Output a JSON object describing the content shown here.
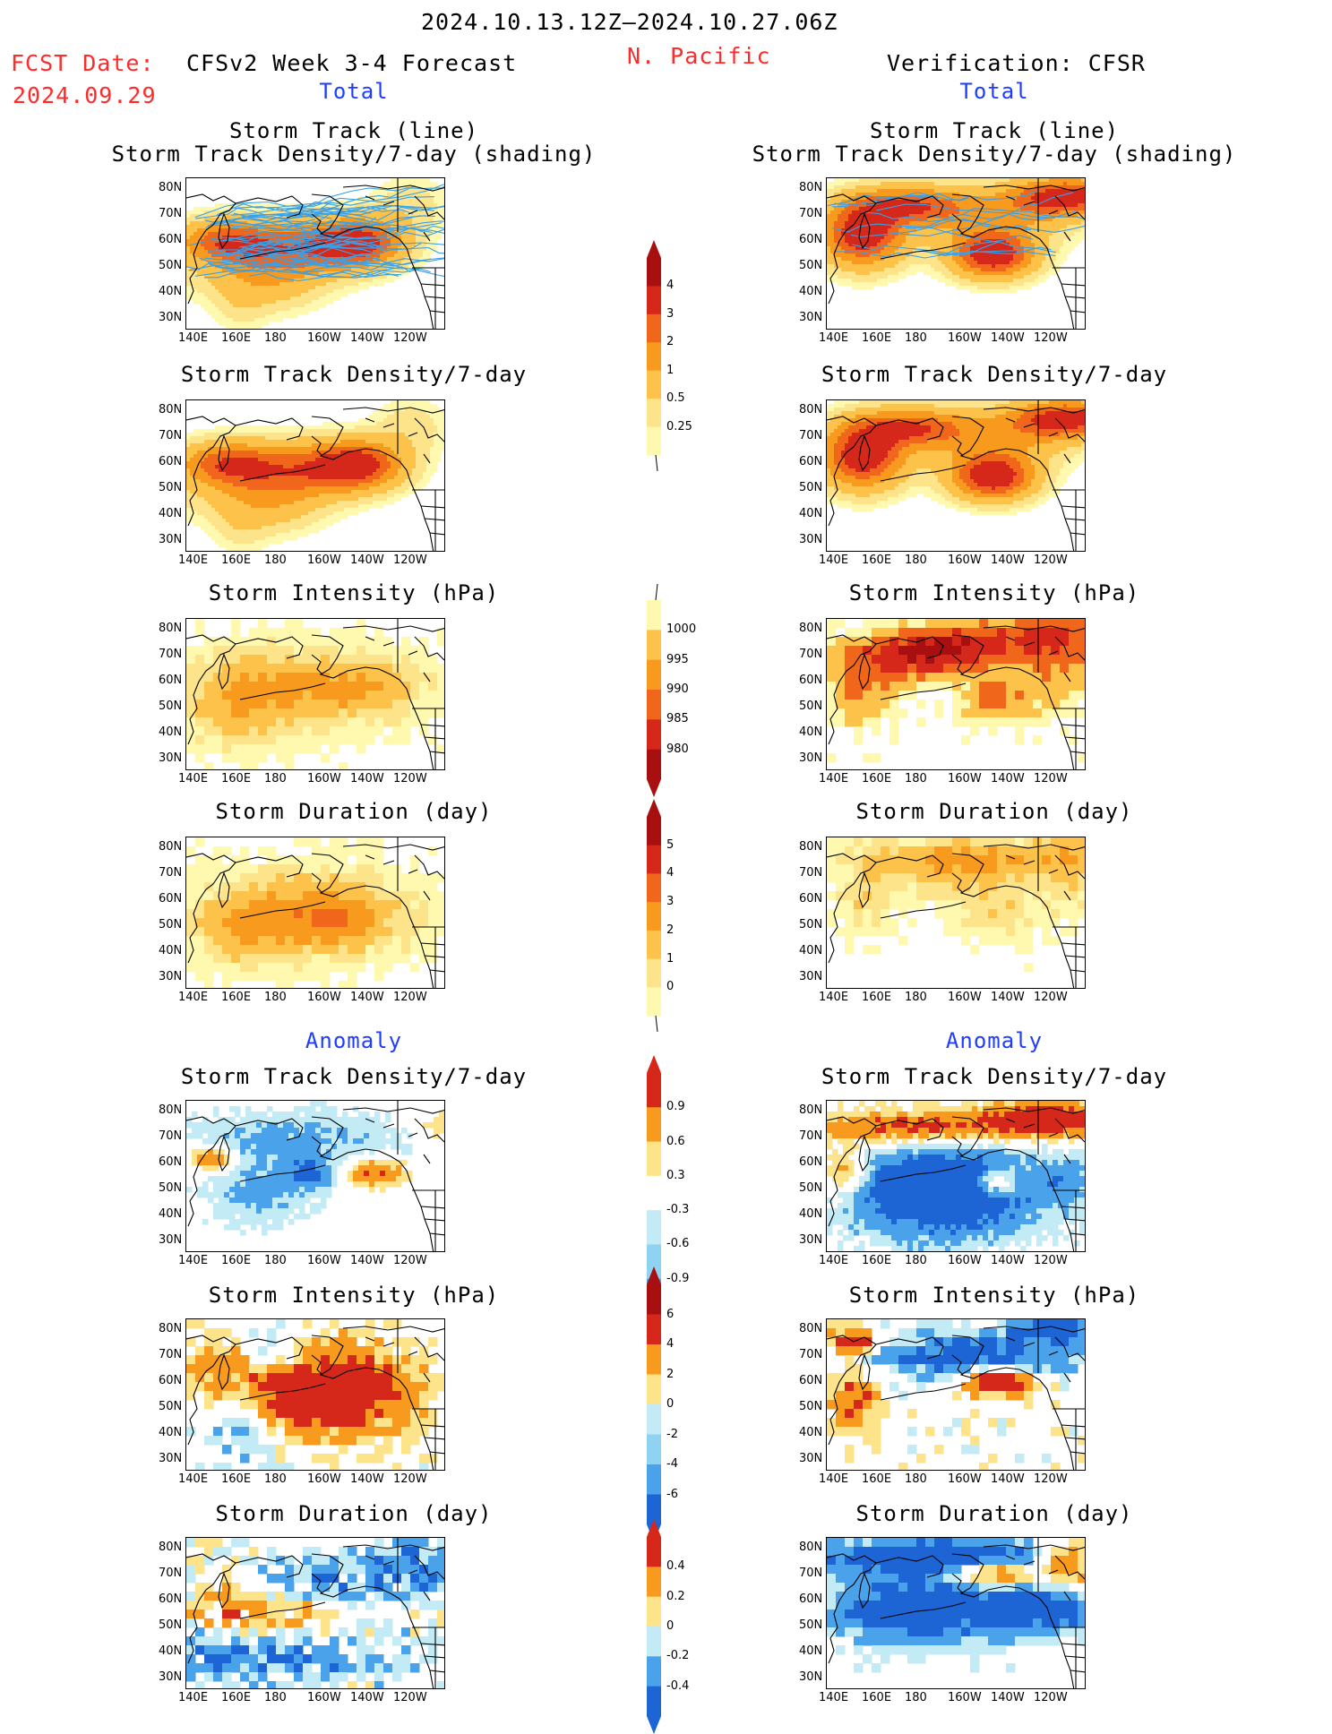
{
  "header": {
    "date_range": "2024.10.13.12Z–2024.10.27.06Z",
    "fcst_label": "FCST Date:",
    "fcst_date": "2024.09.29",
    "forecast_title": "CFSv2 Week 3-4 Forecast",
    "region": "N. Pacific",
    "verification_title": "Verification: CFSR"
  },
  "sections": {
    "total_left": "Total",
    "total_right": "Total",
    "anomaly_left": "Anomaly",
    "anomaly_right": "Anomaly"
  },
  "titles": {
    "track_line": "Storm Track (line)",
    "track_shading": "Storm Track Density/7-day (shading)",
    "density": "Storm Track Density/7-day",
    "intensity": "Storm Intensity (hPa)",
    "duration": "Storm Duration (day)"
  },
  "axes": {
    "lat_ticks": [
      "80N",
      "70N",
      "60N",
      "50N",
      "40N",
      "30N"
    ],
    "lon_ticks": [
      "140E",
      "160E",
      "180",
      "160W",
      "140W",
      "120W"
    ]
  },
  "colorbars": {
    "density_total": [
      "4",
      "3",
      "2",
      "1",
      "0.5",
      "0.25"
    ],
    "intensity_total": [
      "1000",
      "995",
      "990",
      "985",
      "980"
    ],
    "duration_total": [
      "5",
      "4",
      "3",
      "2",
      "1",
      "0"
    ],
    "density_anom": [
      "0.9",
      "0.6",
      "0.3",
      "-0.3",
      "-0.6",
      "-0.9"
    ],
    "intensity_anom": [
      "6",
      "4",
      "2",
      "0",
      "-2",
      "-4",
      "-6"
    ],
    "duration_anom": [
      "0.4",
      "0.2",
      "0",
      "-0.2",
      "-0.4"
    ]
  },
  "colors": {
    "warm": [
      "#fff9b0",
      "#fde38a",
      "#fcc24a",
      "#f89a1e",
      "#f0661a",
      "#d6281a",
      "#a80f10"
    ],
    "cool": [
      "#c2ebf6",
      "#8fd2f2",
      "#4aa3ea",
      "#1d64d4"
    ],
    "track_line": "#3aa0e8",
    "title_red": "#ff2a2a",
    "title_blue": "#1f3dff"
  }
}
